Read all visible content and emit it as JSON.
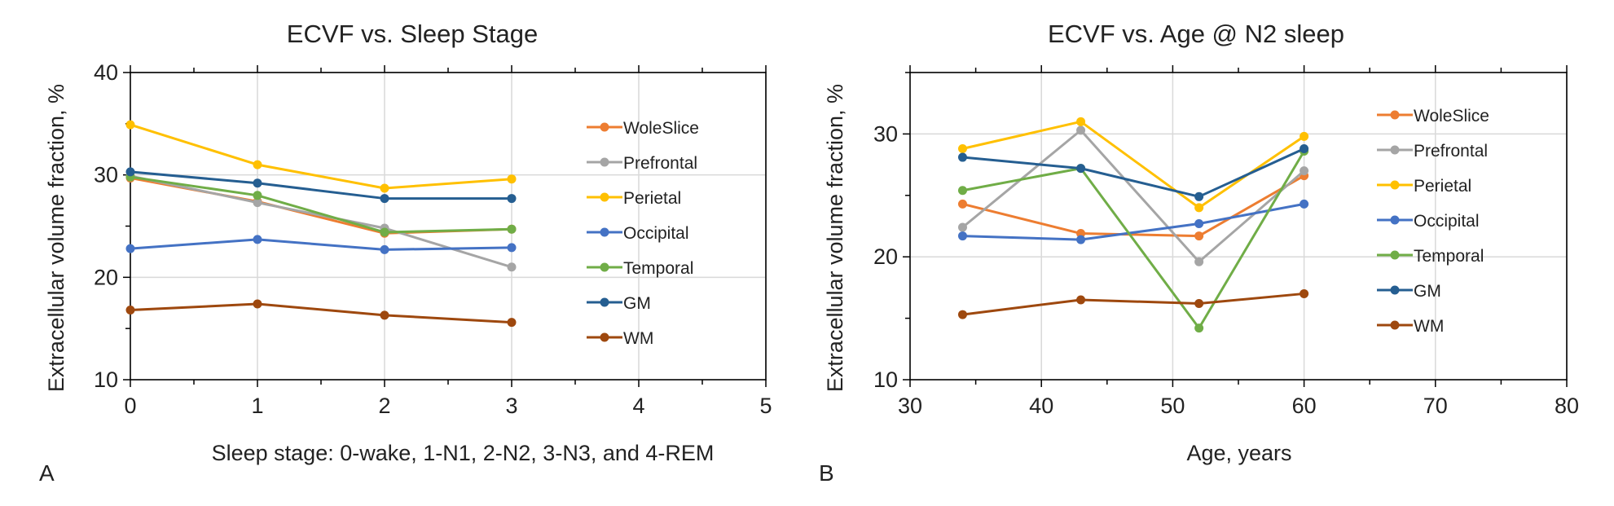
{
  "panels": [
    {
      "label": "A",
      "chart_data": {
        "type": "line",
        "title": "ECVF vs. Sleep Stage",
        "xlabel": "Sleep stage: 0-wake, 1-N1, 2-N2, 3-N3, and 4-REM",
        "ylabel": "Extracellular volume fraction, %",
        "xlim": [
          0,
          5
        ],
        "ylim": [
          10,
          40
        ],
        "x_ticks": [
          0,
          1,
          2,
          3,
          4,
          5
        ],
        "y_ticks": [
          10,
          20,
          30,
          40
        ],
        "grid": true,
        "legend_position": "right",
        "x": [
          0,
          1,
          2,
          3
        ],
        "series": [
          {
            "name": "WoleSlice",
            "color": "#ED7D31",
            "values": [
              29.7,
              27.4,
              24.3,
              24.7
            ]
          },
          {
            "name": "Prefrontal",
            "color": "#A5A5A5",
            "values": [
              29.9,
              27.3,
              24.8,
              21.0
            ]
          },
          {
            "name": "Perietal",
            "color": "#FFC000",
            "values": [
              34.9,
              31.0,
              28.7,
              29.6
            ]
          },
          {
            "name": "Occipital",
            "color": "#4472C4",
            "values": [
              22.8,
              23.7,
              22.7,
              22.9
            ]
          },
          {
            "name": "Temporal",
            "color": "#70AD47",
            "values": [
              29.8,
              28.0,
              24.4,
              24.7
            ]
          },
          {
            "name": "GM",
            "color": "#255E91",
            "values": [
              30.3,
              29.2,
              27.7,
              27.7
            ]
          },
          {
            "name": "WM",
            "color": "#9E480E",
            "values": [
              16.8,
              17.4,
              16.3,
              15.6
            ]
          }
        ]
      }
    },
    {
      "label": "B",
      "chart_data": {
        "type": "line",
        "title": "ECVF vs. Age  @ N2 sleep",
        "xlabel": "Age, years",
        "ylabel": "Extracellular volume fraction, %",
        "xlim": [
          30,
          80
        ],
        "ylim": [
          10,
          35
        ],
        "x_ticks": [
          30,
          40,
          50,
          60,
          70,
          80
        ],
        "y_ticks": [
          10,
          20,
          30
        ],
        "grid": true,
        "legend_position": "right",
        "x": [
          34,
          43,
          52,
          60
        ],
        "series": [
          {
            "name": "WoleSlice",
            "color": "#ED7D31",
            "values": [
              24.3,
              21.9,
              21.7,
              26.6
            ]
          },
          {
            "name": "Prefrontal",
            "color": "#A5A5A5",
            "values": [
              22.4,
              30.3,
              19.6,
              27.0
            ]
          },
          {
            "name": "Perietal",
            "color": "#FFC000",
            "values": [
              28.8,
              31.0,
              24.0,
              29.8
            ]
          },
          {
            "name": "Occipital",
            "color": "#4472C4",
            "values": [
              21.7,
              21.4,
              22.7,
              24.3
            ]
          },
          {
            "name": "Temporal",
            "color": "#70AD47",
            "values": [
              25.4,
              27.2,
              14.2,
              28.6
            ]
          },
          {
            "name": "GM",
            "color": "#255E91",
            "values": [
              28.1,
              27.2,
              24.9,
              28.8
            ]
          },
          {
            "name": "WM",
            "color": "#9E480E",
            "values": [
              15.3,
              16.5,
              16.2,
              17.0
            ]
          }
        ]
      }
    }
  ]
}
